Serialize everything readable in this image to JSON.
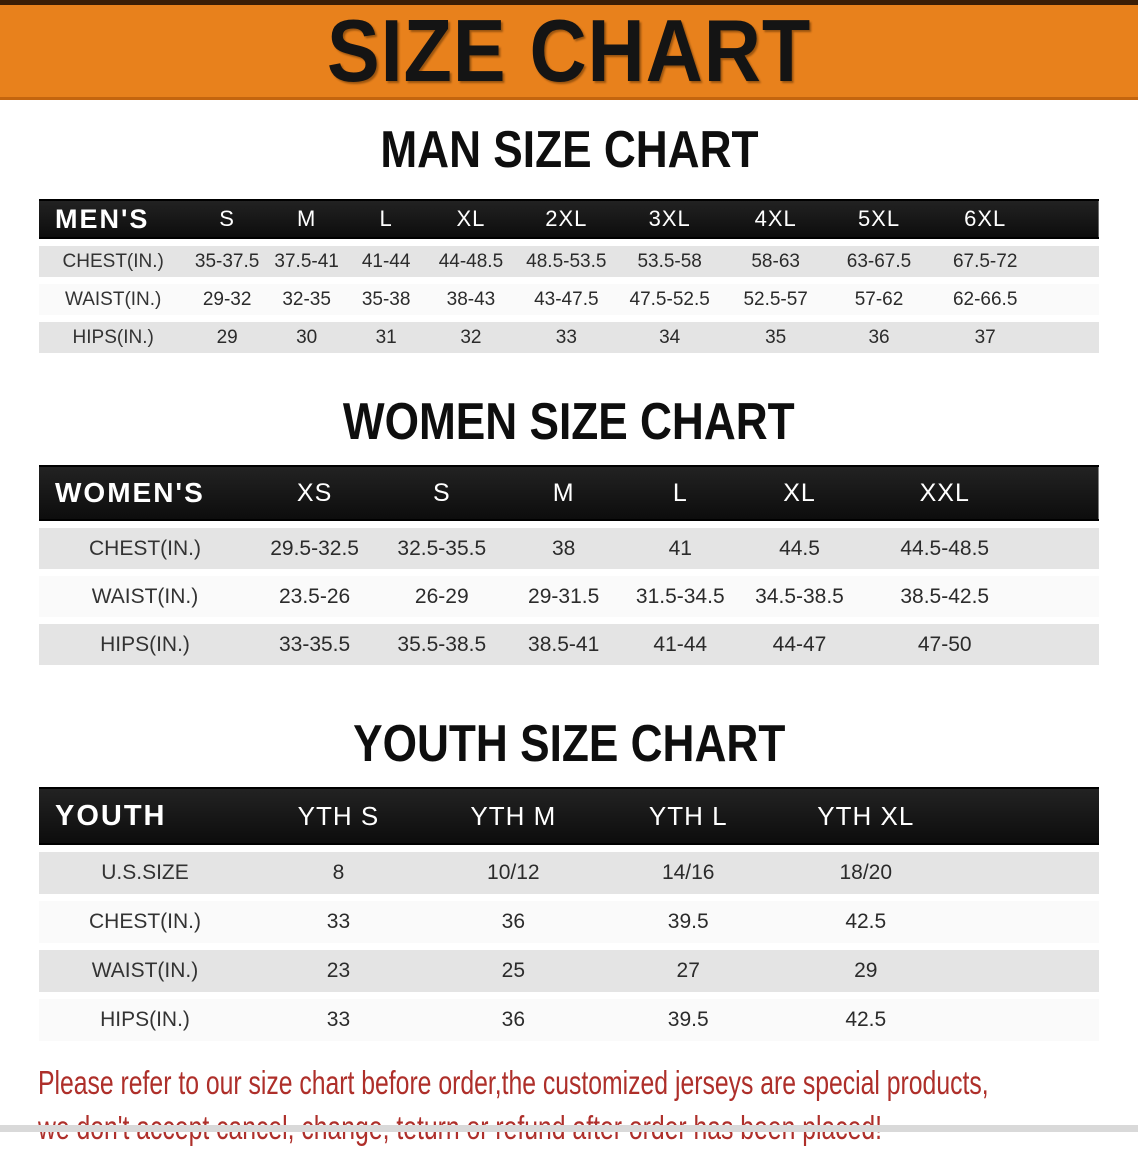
{
  "banner": {
    "title": "SIZE CHART"
  },
  "sections": [
    {
      "id": "men",
      "title": "MAN SIZE CHART",
      "header_label": "MEN'S",
      "columns": [
        "S",
        "M",
        "L",
        "XL",
        "2XL",
        "3XL",
        "4XL",
        "5XL",
        "6XL"
      ],
      "rows": [
        {
          "label": "CHEST(IN.)",
          "values": [
            "35-37.5",
            "37.5-41",
            "41-44",
            "44-48.5",
            "48.5-53.5",
            "53.5-58",
            "58-63",
            "63-67.5",
            "67.5-72"
          ]
        },
        {
          "label": "WAIST(IN.)",
          "values": [
            "29-32",
            "32-35",
            "35-38",
            "38-43",
            "43-47.5",
            "47.5-52.5",
            "52.5-57",
            "57-62",
            "62-66.5"
          ]
        },
        {
          "label": "HIPS(IN.)",
          "values": [
            "29",
            "30",
            "31",
            "32",
            "33",
            "34",
            "35",
            "36",
            "37"
          ]
        }
      ]
    },
    {
      "id": "women",
      "title": "WOMEN SIZE CHART",
      "header_label": "WOMEN'S",
      "columns": [
        "XS",
        "S",
        "M",
        "L",
        "XL",
        "XXL"
      ],
      "rows": [
        {
          "label": "CHEST(IN.)",
          "values": [
            "29.5-32.5",
            "32.5-35.5",
            "38",
            "41",
            "44.5",
            "44.5-48.5"
          ]
        },
        {
          "label": "WAIST(IN.)",
          "values": [
            "23.5-26",
            "26-29",
            "29-31.5",
            "31.5-34.5",
            "34.5-38.5",
            "38.5-42.5"
          ]
        },
        {
          "label": "HIPS(IN.)",
          "values": [
            "33-35.5",
            "35.5-38.5",
            "38.5-41",
            "41-44",
            "44-47",
            "47-50"
          ]
        }
      ]
    },
    {
      "id": "youth",
      "title": "YOUTH SIZE CHART",
      "header_label": "YOUTH",
      "columns": [
        "YTH S",
        "YTH M",
        "YTH L",
        "YTH XL"
      ],
      "rows": [
        {
          "label": "U.S.SIZE",
          "values": [
            "8",
            "10/12",
            "14/16",
            "18/20"
          ]
        },
        {
          "label": "CHEST(IN.)",
          "values": [
            "33",
            "36",
            "39.5",
            "42.5"
          ]
        },
        {
          "label": "WAIST(IN.)",
          "values": [
            "23",
            "25",
            "27",
            "29"
          ]
        },
        {
          "label": "HIPS(IN.)",
          "values": [
            "33",
            "36",
            "39.5",
            "42.5"
          ]
        }
      ]
    }
  ],
  "disclaimer": {
    "line1": "Please refer to our size chart before order,the customized jerseys are special products,",
    "line2": "we don't accept cancel, change, teturn or refund after order has been placed!"
  },
  "colors": {
    "banner_orange": "#E8811C",
    "header_black": "#141414",
    "row_gray": "#E4E4E4",
    "row_white": "#FAFAFA",
    "disclaimer_red": "#AE2F2A"
  }
}
